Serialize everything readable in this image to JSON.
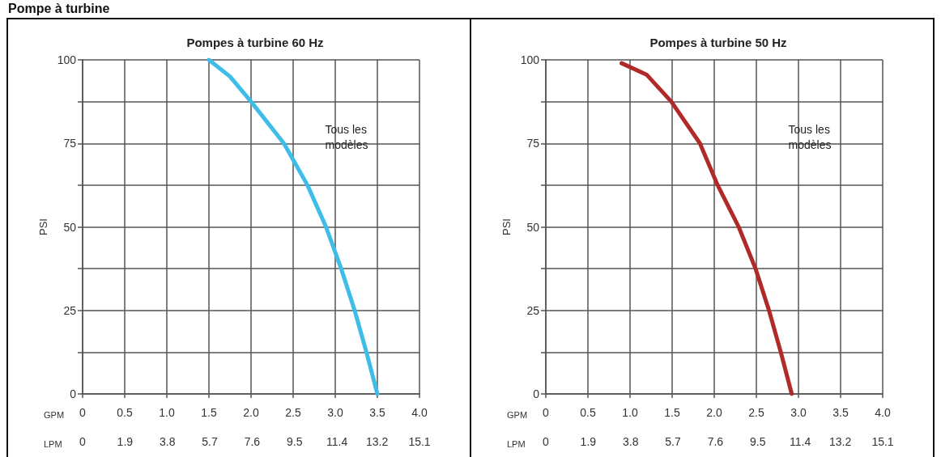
{
  "chart_data": [
    {
      "type": "line",
      "title": "Pompes à turbine 60 Hz",
      "xlabel": "GPM",
      "x2label": "LPM",
      "ylabel": "PSI",
      "annotations": [
        "Tous les modèles",
        "Pompe à turbine"
      ],
      "series": [
        {
          "color": "#3dbde8",
          "x": [
            1.5,
            1.75,
            2.0,
            2.39,
            2.67,
            2.89,
            3.07,
            3.23,
            3.37,
            3.5
          ],
          "values": [
            100,
            95,
            87.5,
            75,
            62.5,
            50,
            37.5,
            25,
            12.5,
            0
          ]
        }
      ],
      "xlim": [
        0,
        4
      ],
      "xticks": [
        0,
        0.5,
        {
          "value": 1,
          "label": "1.0"
        },
        1.5,
        {
          "value": 2,
          "label": "2.0"
        },
        2.5,
        {
          "value": 3,
          "label": "3.0"
        },
        3.5,
        {
          "value": 4,
          "label": "4.0"
        }
      ],
      "x2lim": [
        0,
        15.1
      ],
      "x2ticks": [
        0,
        1.9,
        3.8,
        5.7,
        7.6,
        9.5,
        11.4,
        13.2,
        15.1
      ],
      "ylim": [
        0,
        100
      ],
      "yticks": [
        0,
        {
          "value": 12.5,
          "label": null
        },
        25,
        {
          "value": 37.5,
          "label": null
        },
        50,
        {
          "value": 62.5,
          "label": null
        },
        75,
        {
          "value": 87.5,
          "label": null
        },
        100
      ],
      "grid": true,
      "marker": "none"
    },
    {
      "type": "line",
      "title": "Pompes à turbine 50 Hz",
      "xlabel": "GPM",
      "x2label": "LPM",
      "ylabel": "PSI",
      "annotations": [
        "Tous les modèles"
      ],
      "series": [
        {
          "color": "#b02a2a",
          "x": [
            0.9,
            1.2,
            1.49,
            1.83,
            2.04,
            2.29,
            2.49,
            2.65,
            2.79,
            2.92
          ],
          "values": [
            99,
            95.5,
            87.5,
            75,
            62.5,
            50,
            37.5,
            25,
            12.5,
            0
          ]
        }
      ],
      "xlim": [
        0,
        4
      ],
      "xticks": [
        0,
        0.5,
        {
          "value": 1,
          "label": "1.0"
        },
        1.5,
        {
          "value": 2,
          "label": "2.0"
        },
        2.5,
        {
          "value": 3,
          "label": "3.0"
        },
        3.5,
        {
          "value": 4,
          "label": "4.0"
        }
      ],
      "x2lim": [
        0,
        15.1
      ],
      "x2ticks": [
        0,
        1.9,
        3.8,
        5.7,
        7.6,
        9.5,
        11.4,
        13.2,
        15.1
      ],
      "ylim": [
        0,
        100
      ],
      "yticks": [
        0,
        {
          "value": 12.5,
          "label": null
        },
        25,
        {
          "value": 37.5,
          "label": null
        },
        50,
        {
          "value": 62.5,
          "label": null
        },
        75,
        {
          "value": 87.5,
          "label": null
        },
        100
      ],
      "grid": true,
      "marker": "none"
    }
  ]
}
